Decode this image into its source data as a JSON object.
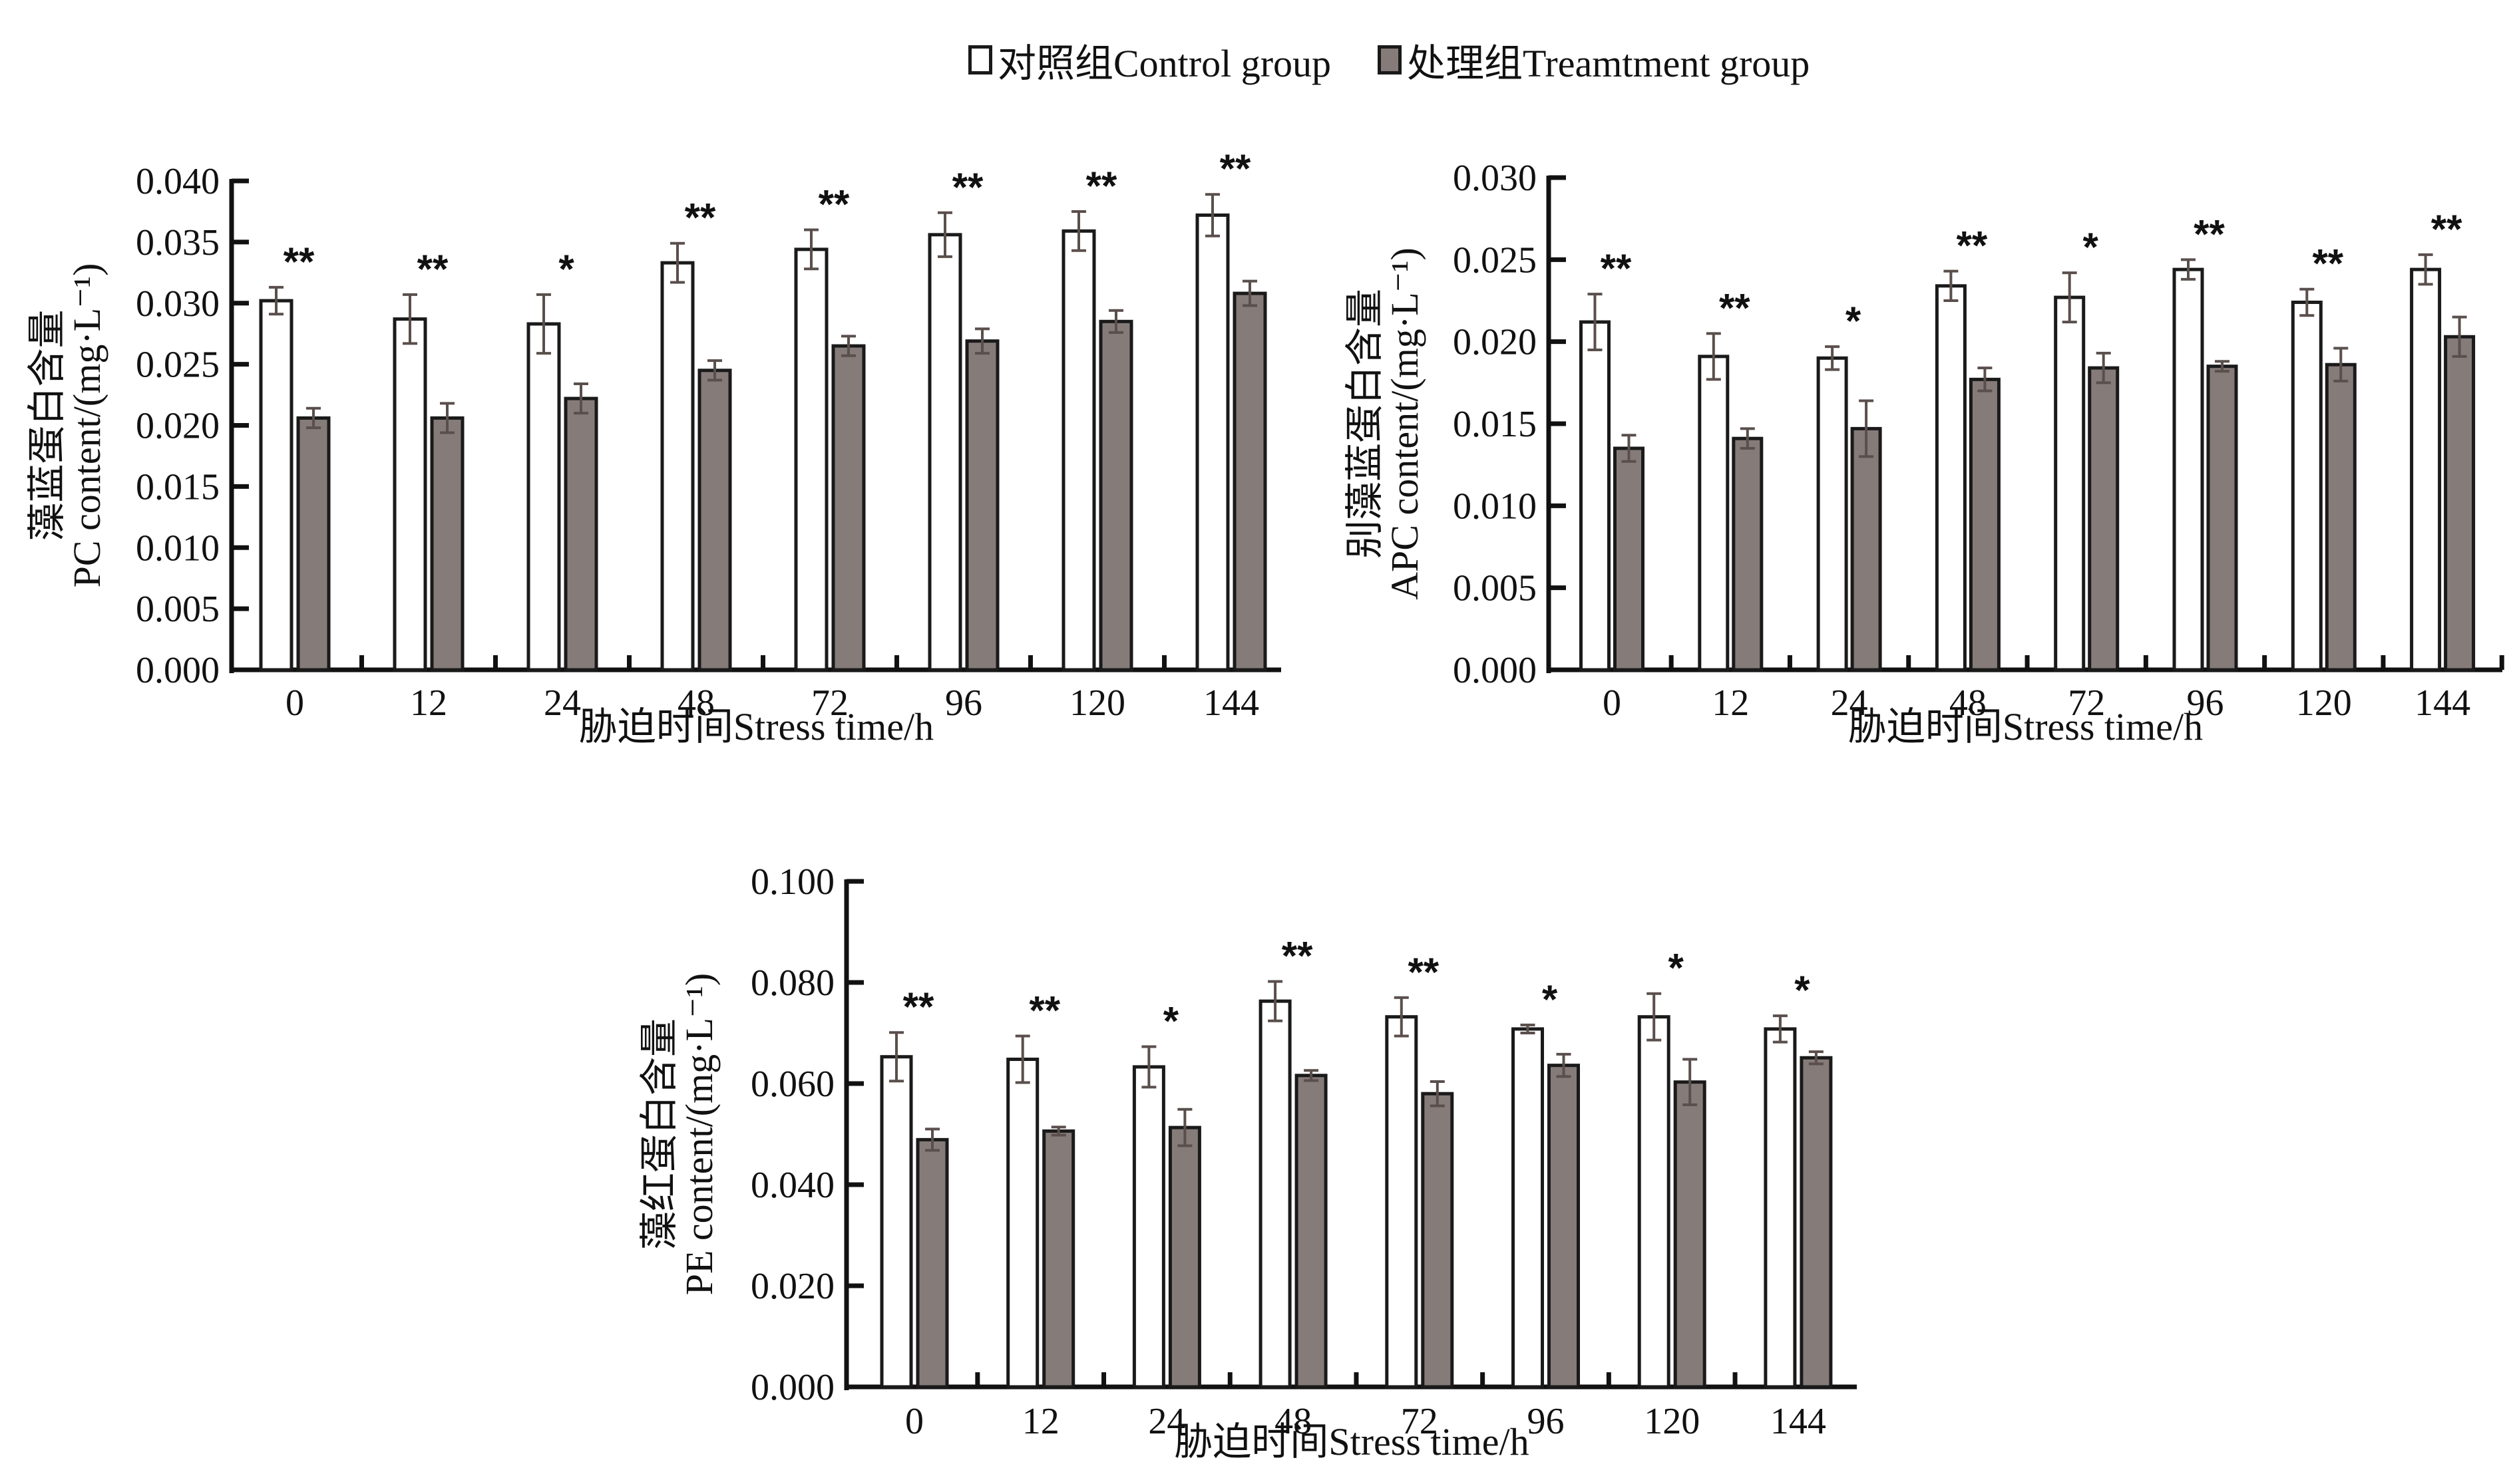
{
  "legend": {
    "control_label": "对照组Control group",
    "treatment_label": "处理组Treamtment group"
  },
  "colors": {
    "control_fill": "#ffffff",
    "treatment_fill": "#857b79",
    "bar_stroke": "#1a1a1a",
    "error_bar": "#5a4f4c",
    "axis": "#111111"
  },
  "chart_data": [
    {
      "id": "pc",
      "type": "bar",
      "title": "",
      "xlabel": "胁迫时间Stress time/h",
      "ylabel_cn": "藻蓝蛋白含量",
      "ylabel_en": "PC content/(mg·L⁻¹)",
      "categories": [
        "0",
        "12",
        "24",
        "48",
        "72",
        "96",
        "120",
        "144"
      ],
      "ylim": [
        0,
        0.04
      ],
      "yticks": [
        "0.000",
        "0.005",
        "0.010",
        "0.015",
        "0.020",
        "0.025",
        "0.030",
        "0.035",
        "0.040"
      ],
      "grid": false,
      "series": [
        {
          "name": "对照组Control group",
          "values": [
            0.0302,
            0.0287,
            0.0283,
            0.0333,
            0.0344,
            0.0356,
            0.0359,
            0.0372
          ],
          "errors": [
            0.0011,
            0.002,
            0.0024,
            0.0016,
            0.0016,
            0.0018,
            0.0016,
            0.0017
          ]
        },
        {
          "name": "处理组Treamtment group",
          "values": [
            0.0206,
            0.0206,
            0.0222,
            0.0245,
            0.0265,
            0.0269,
            0.0285,
            0.0308
          ],
          "errors": [
            0.0008,
            0.0012,
            0.0012,
            0.0008,
            0.0008,
            0.001,
            0.0009,
            0.001
          ]
        }
      ],
      "significance": [
        "**",
        "**",
        "*",
        "**",
        "**",
        "**",
        "**",
        "**"
      ]
    },
    {
      "id": "apc",
      "type": "bar",
      "title": "",
      "xlabel": "胁迫时间Stress time/h",
      "ylabel_cn": "别藻蓝蛋白含量",
      "ylabel_en": "APC content/(mg·L⁻¹)",
      "categories": [
        "0",
        "12",
        "24",
        "48",
        "72",
        "96",
        "120",
        "144"
      ],
      "ylim": [
        0,
        0.03
      ],
      "yticks": [
        "0.000",
        "0.005",
        "0.010",
        "0.015",
        "0.020",
        "0.025",
        "0.030"
      ],
      "grid": false,
      "series": [
        {
          "name": "对照组Control group",
          "values": [
            0.0212,
            0.0191,
            0.019,
            0.0234,
            0.0227,
            0.0244,
            0.0224,
            0.0244
          ],
          "errors": [
            0.0017,
            0.0014,
            0.0007,
            0.0009,
            0.0015,
            0.0006,
            0.0008,
            0.0009
          ]
        },
        {
          "name": "处理组Treamtment group",
          "values": [
            0.0135,
            0.0141,
            0.0147,
            0.0177,
            0.0184,
            0.0185,
            0.0186,
            0.0203
          ],
          "errors": [
            0.0008,
            0.0006,
            0.0017,
            0.0007,
            0.0009,
            0.0003,
            0.001,
            0.0012
          ]
        }
      ],
      "significance": [
        "**",
        "**",
        "*",
        "**",
        "*",
        "**",
        "**",
        "**"
      ]
    },
    {
      "id": "pe",
      "type": "bar",
      "title": "",
      "xlabel": "胁迫时间Stress time/h",
      "ylabel_cn": "藻红蛋白含量",
      "ylabel_en": "PE content/(mg·L⁻¹)",
      "categories": [
        "0",
        "12",
        "24",
        "48",
        "72",
        "96",
        "120",
        "144"
      ],
      "ylim": [
        0,
        0.1
      ],
      "yticks": [
        "0.000",
        "0.020",
        "0.040",
        "0.060",
        "0.080",
        "0.100"
      ],
      "grid": false,
      "series": [
        {
          "name": "对照组Control group",
          "values": [
            0.0653,
            0.0648,
            0.0633,
            0.0763,
            0.0732,
            0.0708,
            0.0732,
            0.0708
          ],
          "errors": [
            0.0048,
            0.0046,
            0.004,
            0.0039,
            0.0038,
            0.0008,
            0.0046,
            0.0026
          ]
        },
        {
          "name": "处理组Treamtment group",
          "values": [
            0.0489,
            0.0506,
            0.0513,
            0.0616,
            0.058,
            0.0636,
            0.0603,
            0.0651
          ],
          "errors": [
            0.0021,
            0.0008,
            0.0036,
            0.001,
            0.0024,
            0.0022,
            0.0045,
            0.0012
          ]
        }
      ],
      "significance": [
        "**",
        "**",
        "*",
        "**",
        "**",
        "*",
        "*",
        "*"
      ]
    }
  ]
}
